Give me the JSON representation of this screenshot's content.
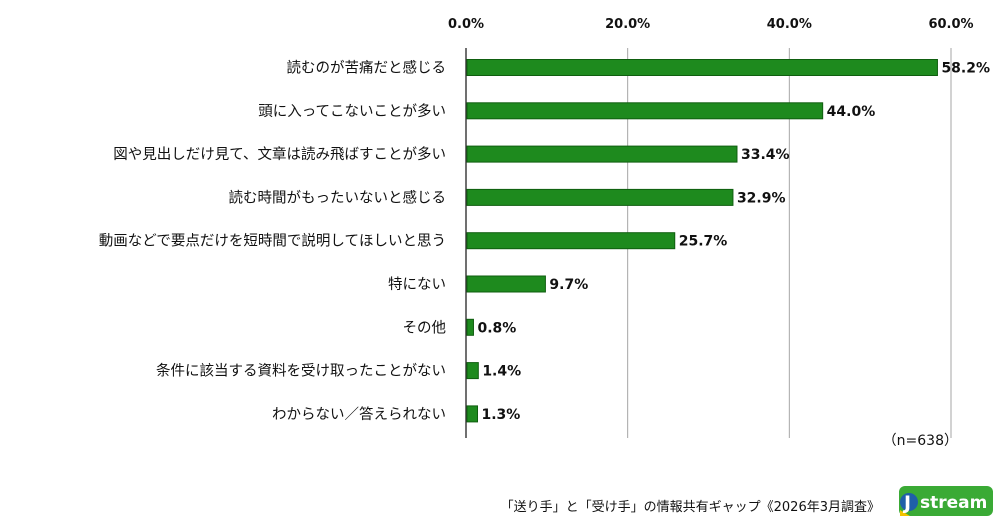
{
  "chart_data": {
    "type": "bar",
    "orientation": "horizontal",
    "categories": [
      "読むのが苦痛だと感じる",
      "頭に入ってこないことが多い",
      "図や見出しだけ見て、文章は読み飛ばすことが多い",
      "読む時間がもったいないと感じる",
      "動画などで要点だけを短時間で説明してほしいと思う",
      "特にない",
      "その他",
      "条件に該当する資料を受け取ったことがない",
      "わからない／答えられない"
    ],
    "values": [
      58.2,
      44.0,
      33.4,
      32.9,
      25.7,
      9.7,
      0.8,
      1.4,
      1.3
    ],
    "value_labels": [
      "58.2%",
      "44.0%",
      "33.4%",
      "32.9%",
      "25.7%",
      "9.7%",
      "0.8%",
      "1.4%",
      "1.3%"
    ],
    "xaxis": {
      "position": "top",
      "min": 0,
      "max": 60,
      "ticks": [
        0,
        20,
        40,
        60
      ],
      "tick_labels": [
        "0.0%",
        "20.0%",
        "40.0%",
        "60.0%"
      ]
    },
    "grid": true,
    "bar_color": "#1e8a1e",
    "bar_edge_color": "#0f5e0f"
  },
  "sample_size_label": "（n=638）",
  "source": "「送り手」と「受け手」の情報共有ギャップ《2026年3月調査》",
  "logo": {
    "text": "stream",
    "initial": "J",
    "colors": {
      "green": "#3aaa35",
      "yellow": "#f2c300",
      "blue": "#1f5fa8"
    }
  }
}
